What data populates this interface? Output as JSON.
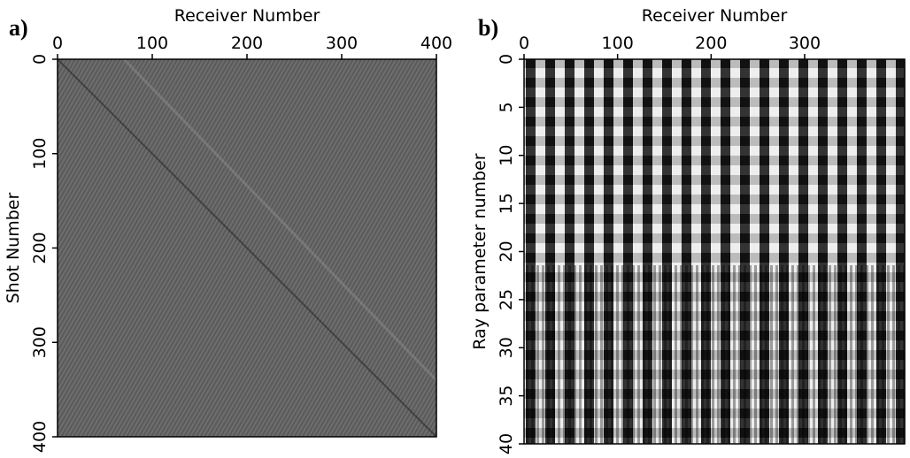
{
  "chart_data": [
    {
      "type": "image",
      "panel": "a)",
      "xlabel": "Receiver Number",
      "ylabel": "Shot Number",
      "xlim": [
        0,
        400
      ],
      "ylim": [
        0,
        400
      ],
      "xticks": [
        0,
        100,
        200,
        300,
        400
      ],
      "yticks": [
        0,
        100,
        200,
        300,
        400
      ]
    },
    {
      "type": "image",
      "panel": "b)",
      "xlabel": "Receiver Number",
      "ylabel": "Ray parameter number",
      "xlim": [
        0,
        407
      ],
      "ylim": [
        0,
        40
      ],
      "xticks": [
        0,
        100,
        200,
        300
      ],
      "yticks": [
        0,
        5,
        10,
        15,
        20,
        25,
        30,
        35,
        40
      ]
    }
  ]
}
